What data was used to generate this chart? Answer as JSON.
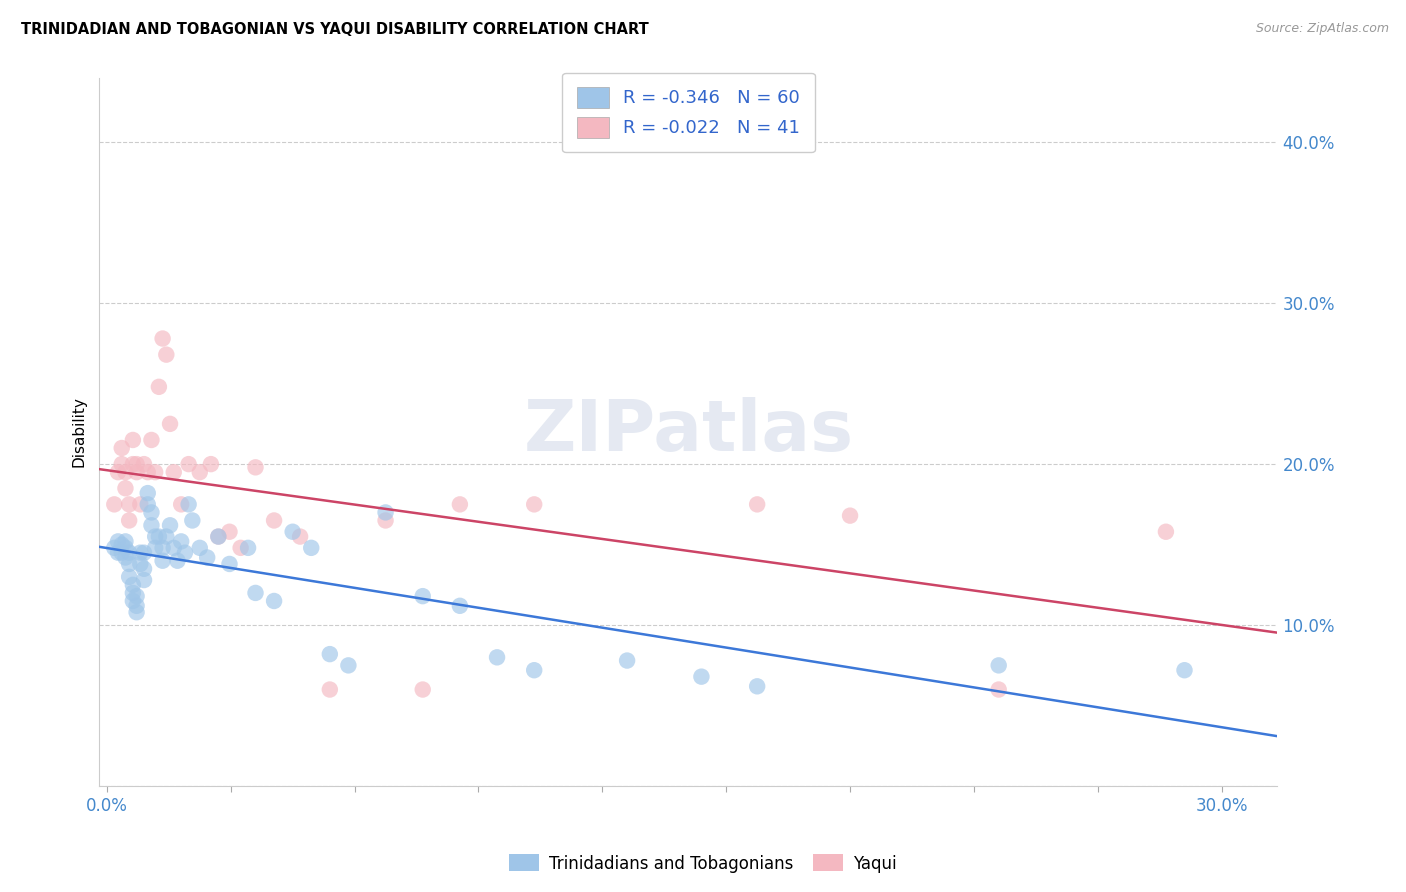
{
  "title": "TRINIDADIAN AND TOBAGONIAN VS YAQUI DISABILITY CORRELATION CHART",
  "source": "Source: ZipAtlas.com",
  "ylabel": "Disability",
  "ylim": [
    0,
    0.44
  ],
  "xlim": [
    -0.002,
    0.315
  ],
  "yticks": [
    0.0,
    0.1,
    0.2,
    0.3,
    0.4
  ],
  "ytick_labels_right": [
    "",
    "10.0%",
    "20.0%",
    "30.0%",
    "40.0%"
  ],
  "xticks": [
    0.0,
    0.03333,
    0.06667,
    0.1,
    0.13333,
    0.16667,
    0.2,
    0.23333,
    0.26667,
    0.3
  ],
  "xtick_labels_shown": [
    "0.0%",
    "",
    "",
    "",
    "",
    "",
    "",
    "",
    "",
    "30.0%"
  ],
  "blue_R": -0.346,
  "blue_N": 60,
  "pink_R": -0.022,
  "pink_N": 41,
  "blue_scatter_color": "#9fc5e8",
  "pink_scatter_color": "#f4b8c1",
  "blue_line_color": "#3c78d8",
  "pink_line_color": "#cc4466",
  "blue_label": "Trinidadians and Tobagonians",
  "pink_label": "Yaqui",
  "tick_color": "#4488cc",
  "legend_text_color": "#3366cc",
  "blue_x": [
    0.002,
    0.003,
    0.003,
    0.004,
    0.004,
    0.005,
    0.005,
    0.005,
    0.006,
    0.006,
    0.006,
    0.007,
    0.007,
    0.007,
    0.008,
    0.008,
    0.008,
    0.009,
    0.009,
    0.01,
    0.01,
    0.01,
    0.011,
    0.011,
    0.012,
    0.012,
    0.013,
    0.013,
    0.014,
    0.015,
    0.015,
    0.016,
    0.017,
    0.018,
    0.019,
    0.02,
    0.021,
    0.022,
    0.023,
    0.025,
    0.027,
    0.03,
    0.033,
    0.038,
    0.04,
    0.045,
    0.05,
    0.055,
    0.06,
    0.065,
    0.075,
    0.085,
    0.095,
    0.105,
    0.115,
    0.14,
    0.16,
    0.175,
    0.24,
    0.29
  ],
  "blue_y": [
    0.148,
    0.145,
    0.152,
    0.15,
    0.145,
    0.152,
    0.148,
    0.142,
    0.138,
    0.145,
    0.13,
    0.125,
    0.12,
    0.115,
    0.118,
    0.112,
    0.108,
    0.145,
    0.138,
    0.145,
    0.135,
    0.128,
    0.175,
    0.182,
    0.17,
    0.162,
    0.155,
    0.148,
    0.155,
    0.148,
    0.14,
    0.155,
    0.162,
    0.148,
    0.14,
    0.152,
    0.145,
    0.175,
    0.165,
    0.148,
    0.142,
    0.155,
    0.138,
    0.148,
    0.12,
    0.115,
    0.158,
    0.148,
    0.082,
    0.075,
    0.17,
    0.118,
    0.112,
    0.08,
    0.072,
    0.078,
    0.068,
    0.062,
    0.075,
    0.072
  ],
  "pink_x": [
    0.002,
    0.003,
    0.004,
    0.004,
    0.005,
    0.005,
    0.006,
    0.006,
    0.007,
    0.007,
    0.008,
    0.008,
    0.009,
    0.01,
    0.011,
    0.012,
    0.013,
    0.014,
    0.015,
    0.016,
    0.017,
    0.018,
    0.02,
    0.022,
    0.025,
    0.028,
    0.03,
    0.033,
    0.036,
    0.04,
    0.045,
    0.052,
    0.06,
    0.075,
    0.085,
    0.095,
    0.115,
    0.175,
    0.2,
    0.24,
    0.285
  ],
  "pink_y": [
    0.175,
    0.195,
    0.2,
    0.21,
    0.185,
    0.195,
    0.175,
    0.165,
    0.2,
    0.215,
    0.2,
    0.195,
    0.175,
    0.2,
    0.195,
    0.215,
    0.195,
    0.248,
    0.278,
    0.268,
    0.225,
    0.195,
    0.175,
    0.2,
    0.195,
    0.2,
    0.155,
    0.158,
    0.148,
    0.198,
    0.165,
    0.155,
    0.06,
    0.165,
    0.06,
    0.175,
    0.175,
    0.175,
    0.168,
    0.06,
    0.158
  ]
}
